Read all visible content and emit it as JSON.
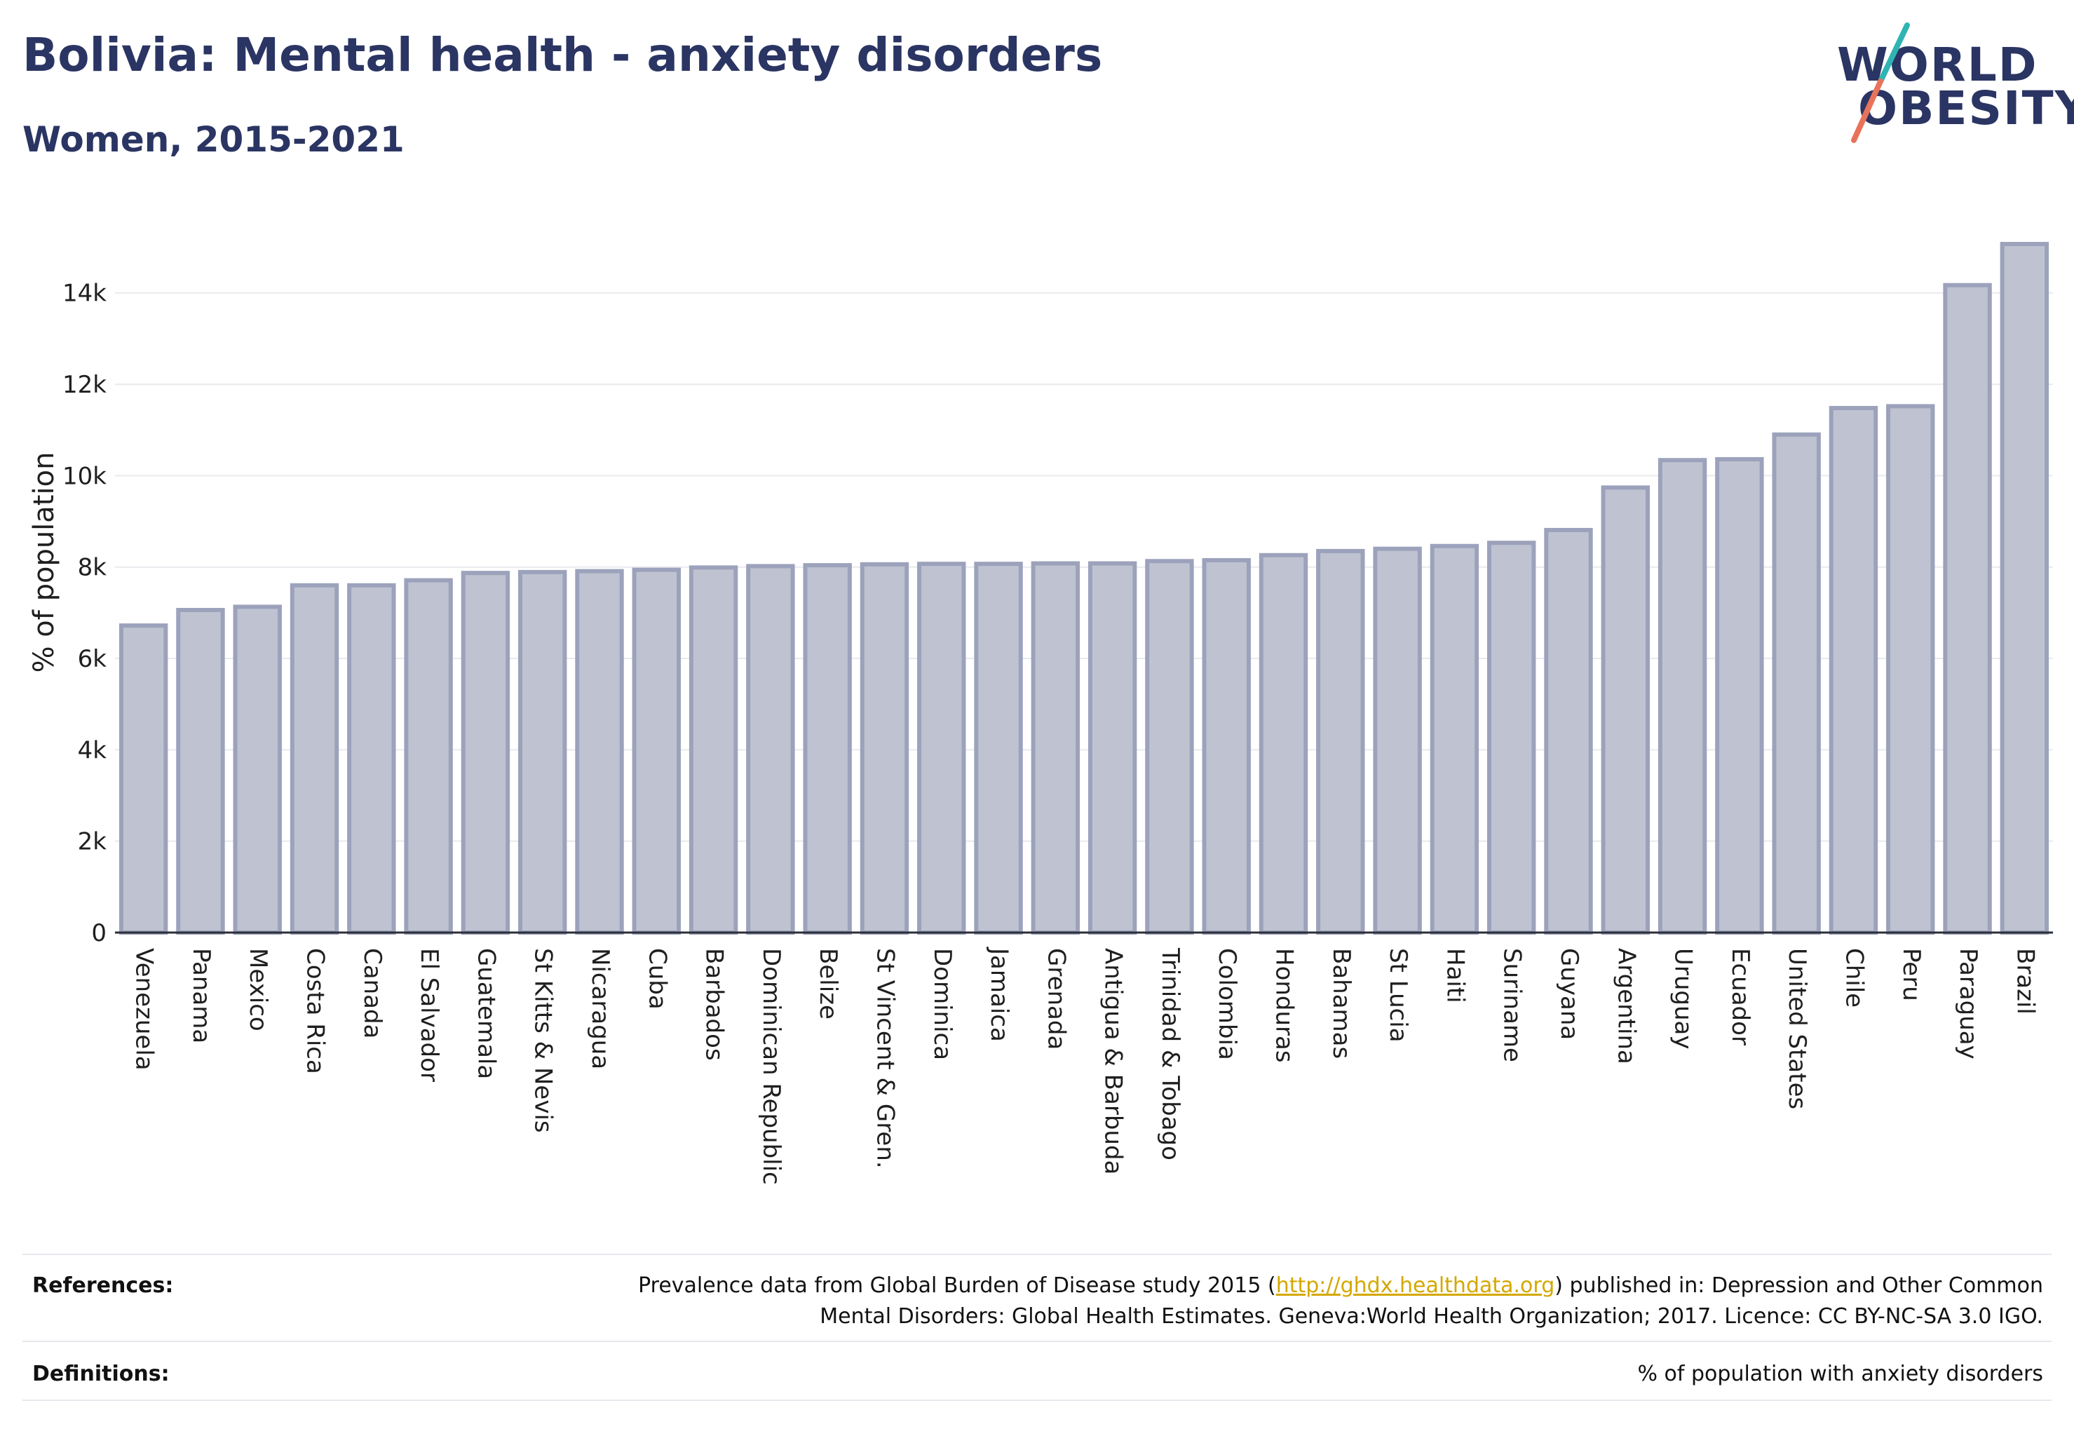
{
  "header": {
    "title": "Bolivia: Mental health - anxiety disorders",
    "subtitle": "Women, 2015-2021"
  },
  "logo": {
    "line1": "WORLD",
    "line2": "OBESITY"
  },
  "colors": {
    "bar_fill": "#bfc3d1",
    "bar_stroke": "#9ca2bb",
    "title": "#2b3563",
    "link": "#d4a800",
    "logo_teal": "#2fb3b3",
    "logo_coral": "#e8735a"
  },
  "chart_data": {
    "type": "bar",
    "title": "Bolivia: Mental health - anxiety disorders",
    "subtitle": "Women, 2015-2021",
    "xlabel": "",
    "ylabel": "% of population",
    "ylim": [
      0,
      15500
    ],
    "yticks": [
      0,
      2000,
      4000,
      6000,
      8000,
      10000,
      12000,
      14000
    ],
    "ytick_labels": [
      "0",
      "2k",
      "4k",
      "6k",
      "8k",
      "10k",
      "12k",
      "14k"
    ],
    "grid": true,
    "categories": [
      "Venezuela",
      "Panama",
      "Mexico",
      "Costa Rica",
      "Canada",
      "El Salvador",
      "Guatemala",
      "St Kitts & Nevis",
      "Nicaragua",
      "Cuba",
      "Barbados",
      "Dominican Republic",
      "Belize",
      "St Vincent & Gren.",
      "Dominica",
      "Jamaica",
      "Grenada",
      "Antigua & Barbuda",
      "Trinidad & Tobago",
      "Colombia",
      "Honduras",
      "Bahamas",
      "St Lucia",
      "Haiti",
      "Suriname",
      "Guyana",
      "Argentina",
      "Uruguay",
      "Ecuador",
      "United States",
      "Chile",
      "Peru",
      "Paraguay",
      "Brazil"
    ],
    "values": [
      6720,
      7060,
      7130,
      7600,
      7600,
      7710,
      7870,
      7890,
      7910,
      7940,
      7990,
      8020,
      8040,
      8060,
      8070,
      8070,
      8080,
      8080,
      8130,
      8150,
      8260,
      8350,
      8400,
      8460,
      8530,
      8810,
      9740,
      10340,
      10360,
      10900,
      11480,
      11520,
      14170,
      15070
    ]
  },
  "footer": {
    "references_label": "References:",
    "references_pre": "Prevalence data from Global Burden of Disease study 2015 (",
    "references_link": "http://ghdx.healthdata.org",
    "references_post_line1": ") published in: Depression and Other Common",
    "references_line2": "Mental Disorders: Global Health Estimates. Geneva:World Health Organization; 2017. Licence: CC BY-NC-SA 3.0 IGO.",
    "definitions_label": "Definitions:",
    "definitions_text": "% of population with anxiety disorders"
  }
}
